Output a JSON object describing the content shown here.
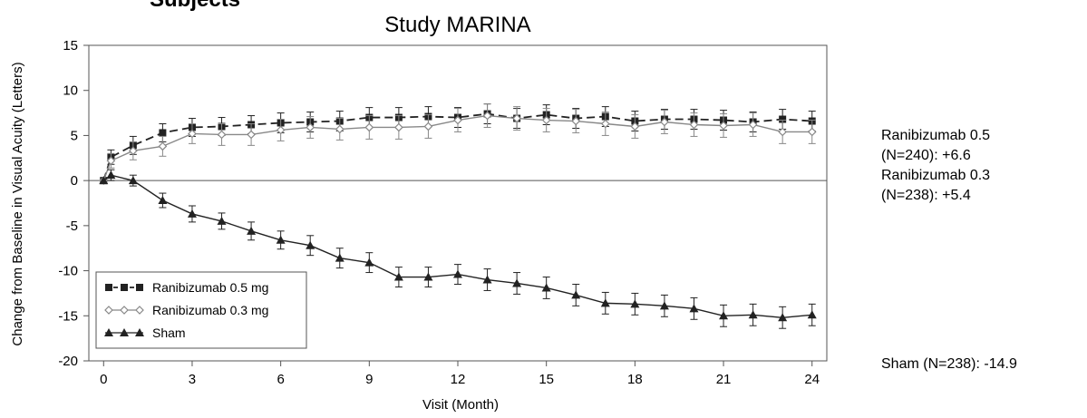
{
  "header": {
    "cut_heading": "Subjects",
    "title": "Study MARINA"
  },
  "side_notes": {
    "ranibizumab_05_line1": "Ranibizumab  0.5",
    "ranibizumab_05_line2": "(N=240):  +6.6",
    "ranibizumab_03_line1": "Ranibizumab  0.3",
    "ranibizumab_03_line2": "(N=238):  +5.4",
    "sham": "Sham  (N=238):  -14.9"
  },
  "chart_data": {
    "type": "line",
    "title": "Study MARINA",
    "xlabel": "Visit (Month)",
    "ylabel": "Change from Baseline in Visual Acuity (Letters)",
    "xlim": [
      -0.5,
      24.5
    ],
    "ylim": [
      -20,
      15
    ],
    "xticks": [
      0,
      3,
      6,
      9,
      12,
      15,
      18,
      21,
      24
    ],
    "yticks": [
      -20,
      -15,
      -10,
      -5,
      0,
      5,
      10,
      15
    ],
    "zero_line": true,
    "grid": false,
    "legend_position": "bottom-left",
    "x": [
      0,
      0.25,
      1,
      2,
      3,
      4,
      5,
      6,
      7,
      8,
      9,
      10,
      11,
      12,
      13,
      14,
      15,
      16,
      17,
      18,
      19,
      20,
      21,
      22,
      23,
      24
    ],
    "series": [
      {
        "name": "Ranibizumab 0.5 mg",
        "marker": "square",
        "line_style": "dashed",
        "color": "#222222",
        "values": [
          0,
          2.6,
          3.9,
          5.3,
          5.9,
          6.0,
          6.2,
          6.4,
          6.5,
          6.6,
          7.0,
          7.0,
          7.1,
          7.0,
          7.4,
          6.9,
          7.3,
          6.9,
          7.1,
          6.6,
          6.8,
          6.8,
          6.7,
          6.5,
          6.8,
          6.6
        ],
        "errors": [
          0,
          0.8,
          1.0,
          1.0,
          1.0,
          1.0,
          1.0,
          1.1,
          1.1,
          1.1,
          1.1,
          1.1,
          1.1,
          1.1,
          1.1,
          1.1,
          1.1,
          1.1,
          1.1,
          1.1,
          1.1,
          1.1,
          1.1,
          1.1,
          1.1,
          1.1
        ]
      },
      {
        "name": "Ranibizumab 0.3 mg",
        "marker": "diamond-open",
        "line_style": "solid",
        "color": "#888888",
        "values": [
          0,
          2.2,
          3.3,
          3.8,
          5.2,
          5.1,
          5.1,
          5.6,
          5.9,
          5.7,
          5.9,
          5.9,
          6.0,
          6.7,
          7.2,
          6.9,
          6.7,
          6.6,
          6.3,
          6.0,
          6.5,
          6.2,
          6.1,
          6.2,
          5.4,
          5.4
        ],
        "errors": [
          0,
          0.8,
          1.0,
          1.1,
          1.1,
          1.2,
          1.2,
          1.2,
          1.2,
          1.2,
          1.3,
          1.3,
          1.3,
          1.3,
          1.3,
          1.3,
          1.3,
          1.3,
          1.3,
          1.3,
          1.3,
          1.3,
          1.3,
          1.3,
          1.3,
          1.3
        ]
      },
      {
        "name": "Sham",
        "marker": "triangle",
        "line_style": "solid",
        "color": "#222222",
        "values": [
          0,
          0.6,
          0,
          -2.2,
          -3.7,
          -4.5,
          -5.6,
          -6.6,
          -7.2,
          -8.6,
          -9.1,
          -10.7,
          -10.7,
          -10.4,
          -11.0,
          -11.4,
          -11.9,
          -12.7,
          -13.6,
          -13.7,
          -13.9,
          -14.2,
          -15.0,
          -14.9,
          -15.2,
          -14.9
        ],
        "errors": [
          0,
          0.6,
          0.6,
          0.8,
          0.9,
          0.9,
          1.0,
          1.0,
          1.1,
          1.1,
          1.1,
          1.1,
          1.1,
          1.1,
          1.2,
          1.2,
          1.2,
          1.2,
          1.2,
          1.2,
          1.2,
          1.2,
          1.2,
          1.2,
          1.2,
          1.2
        ]
      }
    ]
  }
}
